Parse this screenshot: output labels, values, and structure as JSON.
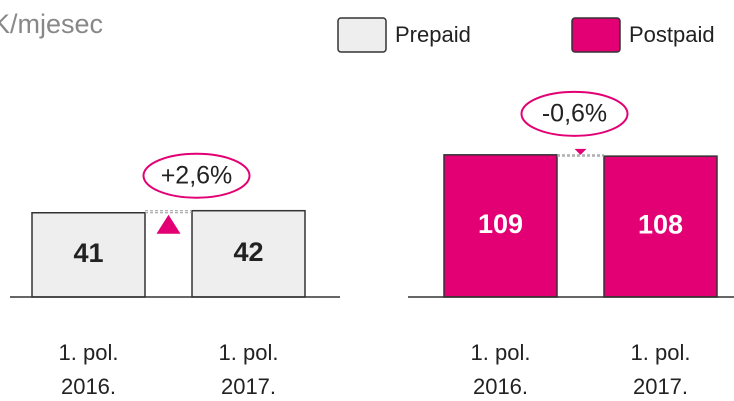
{
  "chart_data": [
    {
      "type": "bar",
      "title": "K/mjesec",
      "categories": [
        "1. pol.\n2016.",
        "1. pol.\n2017."
      ],
      "series": [
        {
          "name": "Prepaid",
          "color": "#eeeeee",
          "values": [
            41,
            42
          ]
        }
      ],
      "ylim": [
        0,
        73
      ],
      "annotation": "+2,6%",
      "direction": "up"
    },
    {
      "type": "bar",
      "categories": [
        "1. pol.\n2016.",
        "1. pol.\n2017."
      ],
      "series": [
        {
          "name": "Postpaid",
          "color": "#e20074",
          "values": [
            109,
            108
          ]
        }
      ],
      "ylim": [
        0,
        115
      ],
      "annotation": "-0,6%",
      "direction": "down"
    }
  ]
}
